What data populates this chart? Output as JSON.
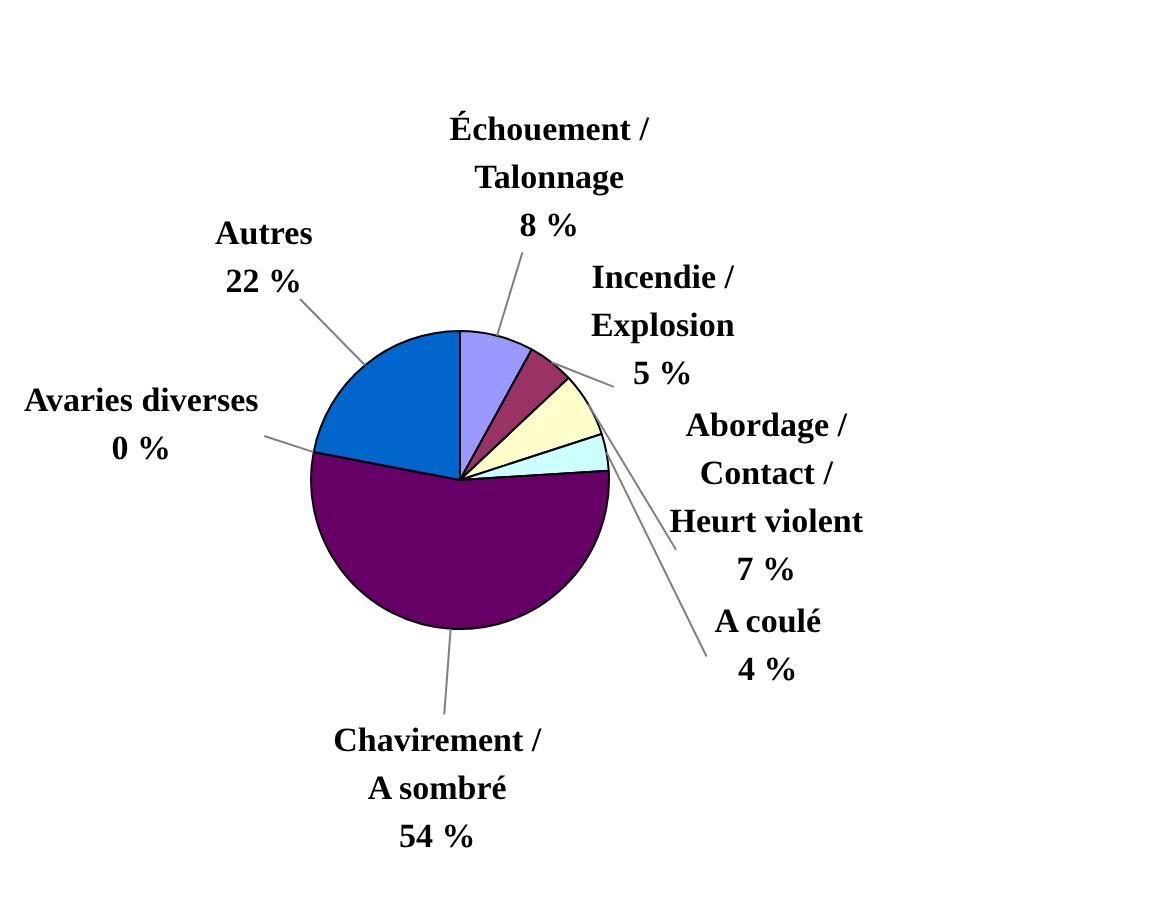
{
  "chart_data": {
    "type": "pie",
    "categories": [
      "Échouement / Talonnage",
      "Incendie / Explosion",
      "Abordage / Contact / Heurt violent",
      "A coulé",
      "Chavirement / A sombré",
      "Avaries diverses",
      "Autres"
    ],
    "values": [
      8,
      5,
      7,
      4,
      54,
      0,
      22
    ],
    "colors": [
      "#9999ff",
      "#993366",
      "#ffffcc",
      "#ccffff",
      "#660066",
      "#ff8080",
      "#0066cc"
    ],
    "value_labels": [
      "8 %",
      "5 %",
      "7 %",
      "4 %",
      "54 %",
      "0 %",
      "22 %"
    ],
    "legend": false
  }
}
